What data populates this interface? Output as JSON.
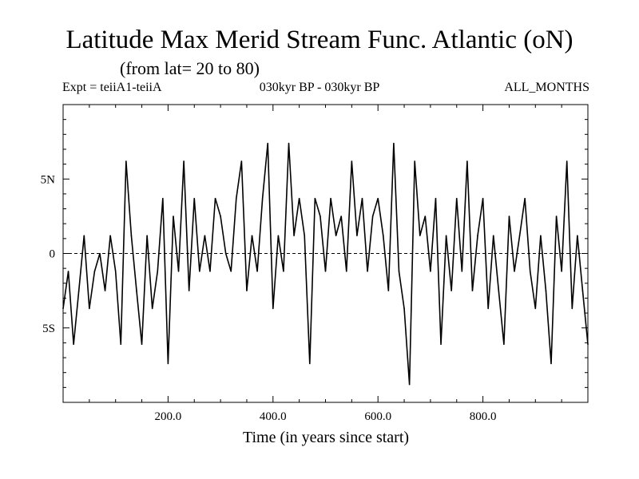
{
  "header": {
    "title": "Latitude Max Merid Stream Func. Atlantic (oN)",
    "subtitle": "(from lat= 20 to 80)",
    "expt": "Expt = teiiA1-teiiA",
    "period": "030kyr BP - 030kyr BP",
    "months": "ALL_MONTHS"
  },
  "chart_data": {
    "type": "line",
    "title": "Latitude Max Merid Stream Func. Atlantic (oN)",
    "subtitle": "(from lat= 20 to 80)",
    "xlabel": "Time (in years since start)",
    "ylabel": "",
    "xlim": [
      0,
      1000
    ],
    "ylim": [
      -10,
      10
    ],
    "grid": false,
    "x_ticks": [
      {
        "value": 200,
        "label": "200.0"
      },
      {
        "value": 400,
        "label": "400.0"
      },
      {
        "value": 600,
        "label": "600.0"
      },
      {
        "value": 800,
        "label": "800.0"
      }
    ],
    "y_ticks": [
      {
        "value": 5,
        "label": "5N"
      },
      {
        "value": 0,
        "label": "0"
      },
      {
        "value": -5,
        "label": "5S"
      }
    ],
    "zero_line": true,
    "series": [
      {
        "x": [
          0,
          10,
          20,
          30,
          40,
          50,
          60,
          70,
          80,
          90,
          100,
          110,
          120,
          130,
          140,
          150,
          160,
          170,
          180,
          190,
          200,
          210,
          220,
          230,
          240,
          250,
          260,
          270,
          280,
          290,
          300,
          310,
          320,
          330,
          340,
          350,
          360,
          370,
          380,
          390,
          400,
          410,
          420,
          430,
          440,
          450,
          460,
          470,
          480,
          490,
          500,
          510,
          520,
          530,
          540,
          550,
          560,
          570,
          580,
          590,
          600,
          610,
          620,
          630,
          640,
          650,
          660,
          670,
          680,
          690,
          700,
          710,
          720,
          730,
          740,
          750,
          760,
          770,
          780,
          790,
          800,
          810,
          820,
          830,
          840,
          850,
          860,
          870,
          880,
          890,
          900,
          910,
          920,
          930,
          940,
          950,
          960,
          970,
          980,
          990,
          1000
        ],
        "values": [
          -3.7,
          -1.2,
          -6.1,
          -2.5,
          1.2,
          -3.7,
          -1.2,
          0,
          -2.5,
          1.2,
          -1.2,
          -6.1,
          6.2,
          1.2,
          -2.5,
          -6.1,
          1.2,
          -3.7,
          -1.2,
          3.7,
          -7.4,
          2.5,
          -1.2,
          6.2,
          -2.5,
          3.7,
          -1.2,
          1.2,
          -1.2,
          3.7,
          2.5,
          0,
          -1.2,
          3.7,
          6.2,
          -2.5,
          1.2,
          -1.2,
          3.7,
          7.4,
          -3.7,
          1.2,
          -1.2,
          7.4,
          1.2,
          3.7,
          1.2,
          -7.4,
          3.7,
          2.5,
          -1.2,
          3.7,
          1.2,
          2.5,
          -1.2,
          6.2,
          1.2,
          3.7,
          -1.2,
          2.5,
          3.7,
          1.2,
          -2.5,
          7.4,
          -1.2,
          -3.7,
          -8.8,
          6.2,
          1.2,
          2.5,
          -1.2,
          3.7,
          -6.1,
          1.2,
          -2.5,
          3.7,
          -1.2,
          6.2,
          -2.5,
          1.2,
          3.7,
          -3.7,
          1.2,
          -2.5,
          -6.1,
          2.5,
          -1.2,
          1.2,
          3.7,
          -1.2,
          -3.7,
          1.2,
          -2.5,
          -7.4,
          2.5,
          -1.2,
          6.2,
          -3.7,
          1.2,
          -2.5,
          -6.1
        ]
      }
    ]
  }
}
